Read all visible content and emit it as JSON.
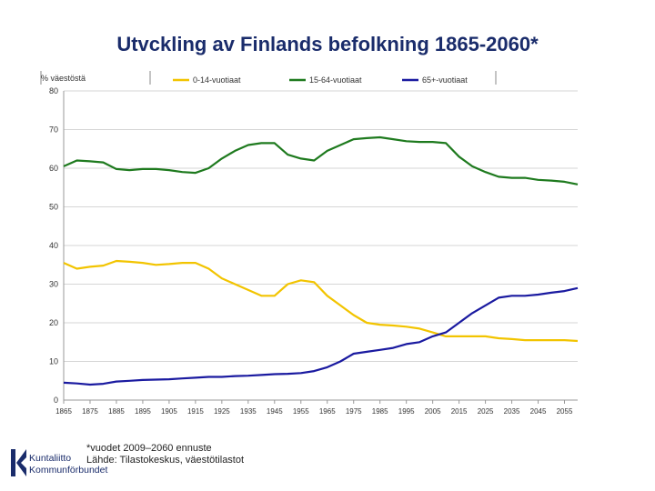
{
  "page": {
    "title": "Utvckling av Finlands befolkning 1865-2060*",
    "footnote_line1": "*vuodet 2009–2060 ennuste",
    "footnote_line2": "Lähde: Tilastokeskus, väestötilastot",
    "logo_line1": "Kuntaliitto",
    "logo_line2": "Kommunförbundet",
    "logo_color": "#1a2c6b"
  },
  "chart_data": {
    "type": "line",
    "title": "Utvckling av Finlands befolkning 1865-2060*",
    "ylabel": "% väestöstä",
    "xlabel": "",
    "ylim": [
      0,
      80
    ],
    "xlim": [
      1865,
      2060
    ],
    "yticks": [
      0,
      10,
      20,
      30,
      40,
      50,
      60,
      70,
      80
    ],
    "xticks": [
      1865,
      1875,
      1885,
      1895,
      1905,
      1915,
      1925,
      1935,
      1945,
      1955,
      1965,
      1975,
      1985,
      1995,
      2005,
      2015,
      2025,
      2035,
      2045,
      2055
    ],
    "xtick_labels": [
      "1865",
      "1875",
      "1885",
      "1895",
      "1905",
      "1915",
      "1925",
      "1935",
      "1945",
      "1955",
      "1965",
      "1975",
      "1985",
      "1995",
      "2005",
      "2015",
      "2025",
      "2035",
      "2045",
      "2055"
    ],
    "grid": true,
    "legend_position": "top",
    "series": [
      {
        "name": "0-14-vuotiaat",
        "color": "#f2c400",
        "x": [
          1865,
          1870,
          1875,
          1880,
          1885,
          1890,
          1895,
          1900,
          1905,
          1910,
          1915,
          1920,
          1925,
          1930,
          1935,
          1940,
          1945,
          1950,
          1955,
          1960,
          1965,
          1970,
          1975,
          1980,
          1985,
          1990,
          1995,
          2000,
          2005,
          2010,
          2015,
          2020,
          2025,
          2030,
          2035,
          2040,
          2045,
          2050,
          2055,
          2060
        ],
        "values": [
          35.5,
          34.0,
          34.5,
          34.8,
          36.0,
          35.8,
          35.5,
          35.0,
          35.2,
          35.5,
          35.5,
          34.0,
          31.5,
          30.0,
          28.5,
          27.0,
          27.0,
          30.0,
          31.0,
          30.5,
          27.0,
          24.5,
          22.0,
          20.0,
          19.5,
          19.3,
          19.0,
          18.5,
          17.5,
          16.5,
          16.5,
          16.5,
          16.5,
          16.0,
          15.8,
          15.5,
          15.5,
          15.5,
          15.5,
          15.3
        ]
      },
      {
        "name": "15-64-vuotiaat",
        "color": "#1e7a1e",
        "x": [
          1865,
          1870,
          1875,
          1880,
          1885,
          1890,
          1895,
          1900,
          1905,
          1910,
          1915,
          1920,
          1925,
          1930,
          1935,
          1940,
          1945,
          1950,
          1955,
          1960,
          1965,
          1970,
          1975,
          1980,
          1985,
          1990,
          1995,
          2000,
          2005,
          2010,
          2015,
          2020,
          2025,
          2030,
          2035,
          2040,
          2045,
          2050,
          2055,
          2060
        ],
        "values": [
          60.5,
          62.0,
          61.8,
          61.5,
          59.8,
          59.5,
          59.8,
          59.8,
          59.5,
          59.0,
          58.8,
          60.0,
          62.5,
          64.5,
          66.0,
          66.5,
          66.5,
          63.5,
          62.5,
          62.0,
          64.5,
          66.0,
          67.5,
          67.8,
          68.0,
          67.5,
          67.0,
          66.8,
          66.8,
          66.5,
          63.0,
          60.5,
          59.0,
          57.8,
          57.5,
          57.5,
          57.0,
          56.8,
          56.5,
          55.8
        ]
      },
      {
        "name": "65+-vuotiaat",
        "color": "#1a1aa0",
        "x": [
          1865,
          1870,
          1875,
          1880,
          1885,
          1890,
          1895,
          1900,
          1905,
          1910,
          1915,
          1920,
          1925,
          1930,
          1935,
          1940,
          1945,
          1950,
          1955,
          1960,
          1965,
          1970,
          1975,
          1980,
          1985,
          1990,
          1995,
          2000,
          2005,
          2010,
          2015,
          2020,
          2025,
          2030,
          2035,
          2040,
          2045,
          2050,
          2055,
          2060
        ],
        "values": [
          4.5,
          4.3,
          4.0,
          4.2,
          4.8,
          5.0,
          5.2,
          5.3,
          5.4,
          5.6,
          5.8,
          6.0,
          6.0,
          6.2,
          6.3,
          6.5,
          6.7,
          6.8,
          7.0,
          7.5,
          8.5,
          10.0,
          12.0,
          12.5,
          13.0,
          13.5,
          14.5,
          15.0,
          16.5,
          17.5,
          20.0,
          22.5,
          24.5,
          26.5,
          27.0,
          27.0,
          27.3,
          27.8,
          28.2,
          29.0
        ]
      }
    ]
  }
}
